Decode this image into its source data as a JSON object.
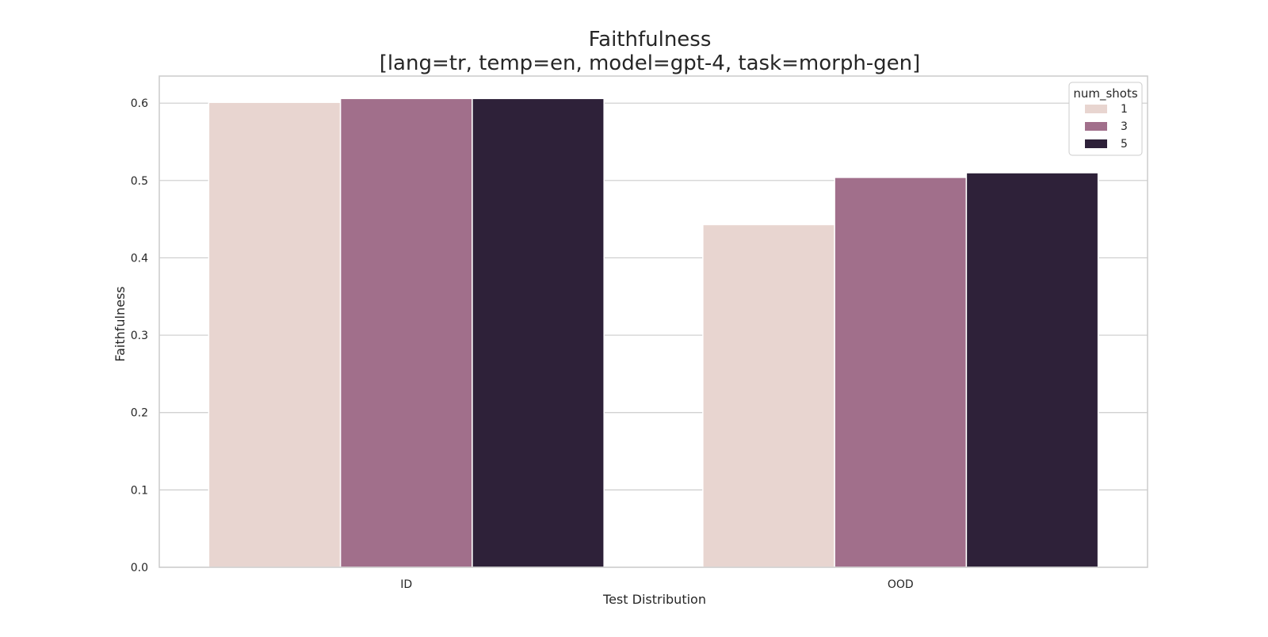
{
  "chart_data": {
    "type": "bar",
    "title": "Faithfulness",
    "subtitle": "[lang=tr, temp=en, model=gpt-4, task=morph-gen]",
    "xlabel": "Test Distribution",
    "ylabel": "Faithfulness",
    "categories": [
      "ID",
      "OOD"
    ],
    "series": [
      {
        "name": "1",
        "color": "#e8d5d0",
        "values": [
          0.601,
          0.443
        ]
      },
      {
        "name": "3",
        "color": "#a16f8b",
        "values": [
          0.606,
          0.504
        ]
      },
      {
        "name": "5",
        "color": "#2e2139",
        "values": [
          0.606,
          0.51
        ]
      }
    ],
    "legend_title": "num_shots",
    "legend_position": "top-right",
    "ylim": [
      0.0,
      0.635
    ],
    "yticks": [
      "0.0",
      "0.1",
      "0.2",
      "0.3",
      "0.4",
      "0.5",
      "0.6"
    ],
    "grid": true
  }
}
